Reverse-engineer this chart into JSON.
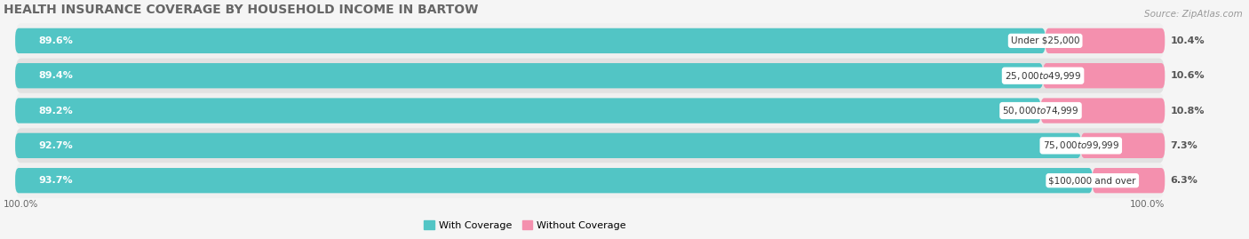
{
  "title": "HEALTH INSURANCE COVERAGE BY HOUSEHOLD INCOME IN BARTOW",
  "source": "Source: ZipAtlas.com",
  "categories": [
    "Under $25,000",
    "$25,000 to $49,999",
    "$50,000 to $74,999",
    "$75,000 to $99,999",
    "$100,000 and over"
  ],
  "with_coverage": [
    89.6,
    89.4,
    89.2,
    92.7,
    93.7
  ],
  "without_coverage": [
    10.4,
    10.6,
    10.8,
    7.3,
    6.3
  ],
  "color_coverage_light": "#7fd6d6",
  "color_coverage_dark": "#2aabab",
  "color_coverage": "#52c5c5",
  "color_no_coverage": "#f490ae",
  "row_bg_color_light": "#f0f0f0",
  "row_bg_color_dark": "#e2e2e2",
  "fig_bg_color": "#f5f5f5",
  "legend_coverage": "With Coverage",
  "legend_no_coverage": "Without Coverage",
  "x_left_label": "100.0%",
  "x_right_label": "100.0%",
  "title_fontsize": 10,
  "source_fontsize": 7.5,
  "bar_label_fontsize": 8,
  "category_fontsize": 7.5,
  "figsize": [
    14.06,
    2.69
  ],
  "dpi": 100
}
